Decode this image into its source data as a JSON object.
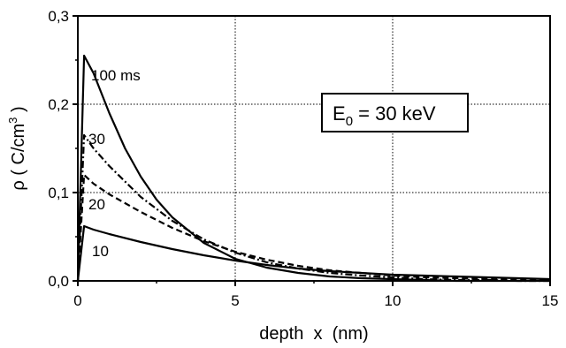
{
  "chart_data": {
    "type": "line",
    "title": "",
    "xlabel": "depth  x  (nm)",
    "ylabel": "ρ  ( C/cm³ )",
    "ylabel_parts": {
      "rho": "ρ",
      "open": "( C/cm",
      "exp": "3",
      "close": " )"
    },
    "xlim": [
      0,
      15
    ],
    "ylim": [
      0,
      0.3
    ],
    "grid": true,
    "x_ticks": [
      0,
      5,
      10,
      15
    ],
    "x_tick_labels": [
      "0",
      "5",
      "10",
      "15"
    ],
    "y_ticks": [
      0,
      0.1,
      0.2,
      0.3
    ],
    "y_tick_labels": [
      "0,0",
      "0,1",
      "0,2",
      "0,3"
    ],
    "annotation_box": {
      "text_main": "E",
      "text_sub": "0",
      "text_rest": " = 30 keV"
    },
    "series": [
      {
        "name": "10",
        "style": "solid",
        "x": [
          0,
          0.2,
          0.5,
          1,
          2,
          3,
          4,
          5,
          6,
          7,
          8,
          9,
          10,
          11,
          12,
          13,
          14,
          15
        ],
        "values": [
          0,
          0.062,
          0.058,
          0.053,
          0.044,
          0.036,
          0.029,
          0.023,
          0.018,
          0.014,
          0.011,
          0.009,
          0.007,
          0.006,
          0.005,
          0.004,
          0.003,
          0.002
        ]
      },
      {
        "name": "20",
        "style": "dashed",
        "x": [
          0,
          0.2,
          0.5,
          1,
          2,
          3,
          4,
          5,
          6,
          7,
          8,
          9,
          10,
          11,
          12,
          13,
          14,
          15
        ],
        "values": [
          0,
          0.12,
          0.11,
          0.098,
          0.078,
          0.06,
          0.045,
          0.033,
          0.024,
          0.017,
          0.012,
          0.009,
          0.006,
          0.004,
          0.003,
          0.002,
          0.001,
          0.001
        ]
      },
      {
        "name": "30",
        "style": "dashdot",
        "x": [
          0,
          0.2,
          0.5,
          1,
          2,
          3,
          4,
          5,
          6,
          7,
          8,
          9,
          10,
          11,
          12,
          13,
          14,
          15
        ],
        "values": [
          0,
          0.165,
          0.15,
          0.13,
          0.095,
          0.068,
          0.047,
          0.032,
          0.021,
          0.014,
          0.009,
          0.006,
          0.004,
          0.002,
          0.001,
          0.001,
          0.0,
          0.0
        ]
      },
      {
        "name": "100 ms",
        "style": "solid",
        "x": [
          0,
          0.2,
          0.5,
          1,
          1.5,
          2,
          2.5,
          3,
          4,
          5,
          6,
          7,
          8,
          9,
          10,
          11,
          12,
          13,
          14,
          15
        ],
        "values": [
          0,
          0.255,
          0.235,
          0.19,
          0.15,
          0.118,
          0.092,
          0.072,
          0.043,
          0.025,
          0.015,
          0.009,
          0.005,
          0.003,
          0.002,
          0.001,
          0.0,
          0.0,
          0.0,
          0.0
        ]
      }
    ],
    "series_labels": [
      "100 ms",
      "30",
      "20",
      "10"
    ]
  }
}
